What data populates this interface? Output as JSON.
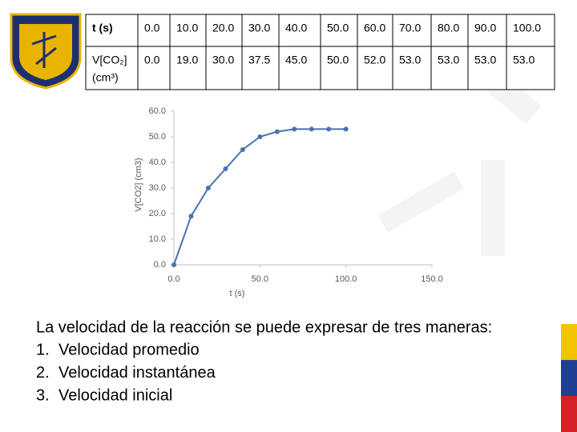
{
  "table": {
    "rows": [
      [
        "t (s)",
        "0.0",
        "10.0",
        "20.0",
        "30.0",
        "40.0",
        "50.0",
        "60.0",
        "70.0",
        "80.0",
        "90.0",
        "100.0"
      ],
      [
        [
          "V[CO₂]",
          "(cm³)"
        ],
        "0.0",
        "19.0",
        "30.0",
        "37.5",
        "45.0",
        "50.0",
        "52.0",
        "53.0",
        "53.0",
        "53.0",
        "53.0"
      ]
    ]
  },
  "chart_data": {
    "type": "line",
    "x_label": "t (s)",
    "y_label": "V[CO2] (cm3)",
    "x": [
      0,
      10,
      20,
      30,
      40,
      50,
      60,
      70,
      80,
      90,
      100
    ],
    "series": [
      {
        "name": "V[CO2]",
        "color": "#4a72b0",
        "values": [
          0,
          19,
          30,
          37.5,
          45,
          50,
          52,
          53,
          53,
          53,
          53
        ]
      }
    ],
    "xlim": [
      0,
      150
    ],
    "xticks": [
      {
        "value": 0,
        "label": "0.0"
      },
      {
        "value": 50,
        "label": "50.0"
      },
      {
        "value": 100,
        "label": "100.0"
      },
      {
        "value": 150,
        "label": "150.0"
      }
    ],
    "ylim": [
      0,
      60
    ],
    "yticks": [
      {
        "value": 0,
        "label": "0.0"
      },
      {
        "value": 10,
        "label": "10.0"
      },
      {
        "value": 20,
        "label": "20.0"
      },
      {
        "value": 30,
        "label": "30.0"
      },
      {
        "value": 40,
        "label": "40.0"
      },
      {
        "value": 50,
        "label": "50.0"
      },
      {
        "value": 60,
        "label": "60.0"
      }
    ],
    "grid": false
  },
  "text": {
    "intro": "La velocidad de la reacción se puede expresar de tres maneras:",
    "items": [
      {
        "number": "1.",
        "text": "Velocidad promedio"
      },
      {
        "number": "2.",
        "text": "Velocidad instantánea"
      },
      {
        "number": "3.",
        "text": "Velocidad inicial"
      }
    ]
  }
}
